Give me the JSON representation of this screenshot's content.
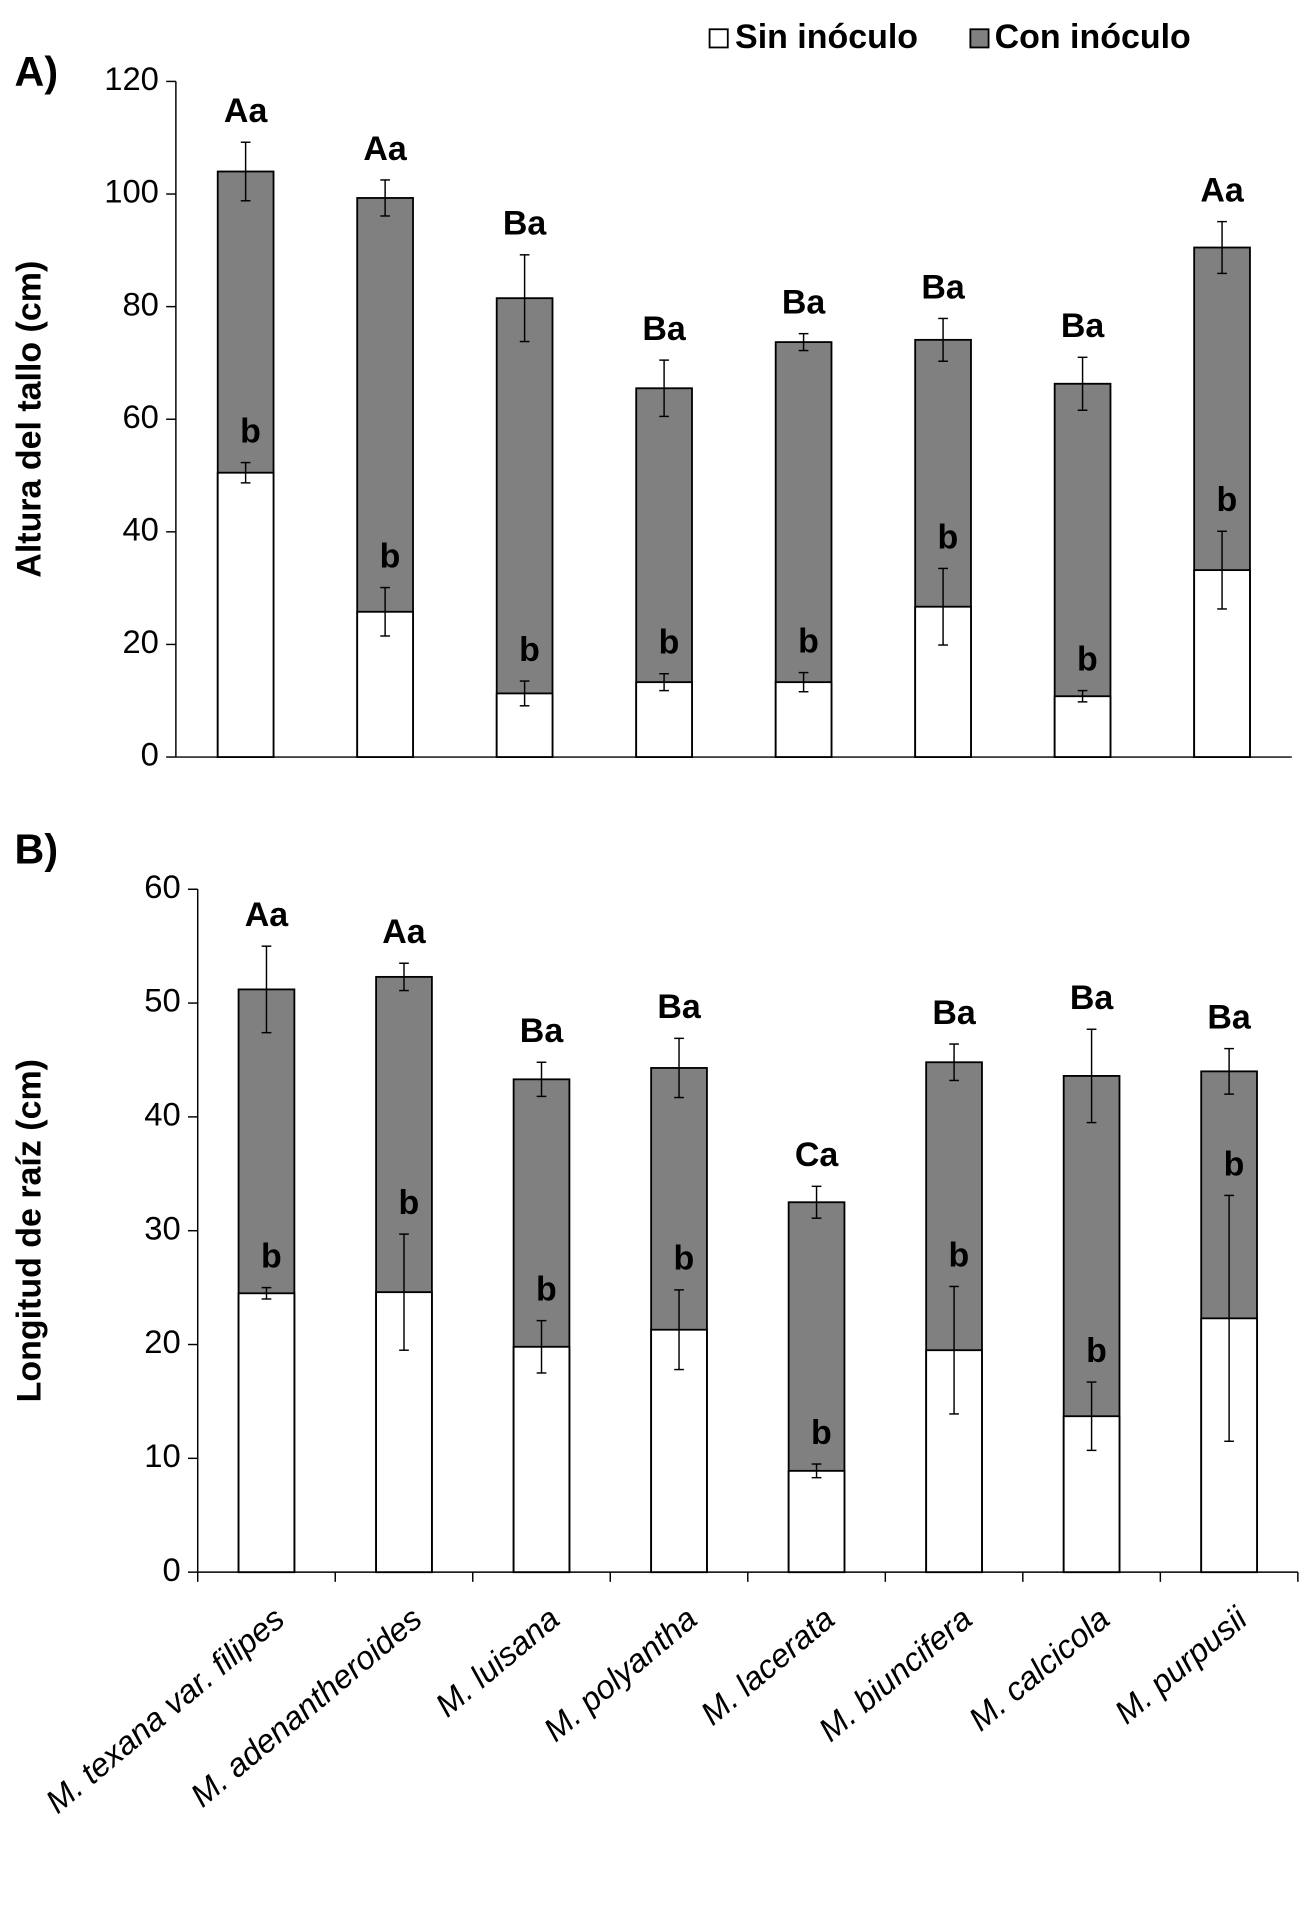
{
  "chart_data": [
    {
      "type": "bar",
      "panel_label": "A)",
      "y_label": "Altura del tallo  (cm)",
      "categories": [
        null,
        null,
        null,
        null,
        null,
        null,
        null,
        null
      ],
      "ylim": [
        0,
        120
      ],
      "yticks": [
        0,
        20,
        40,
        60,
        80,
        100,
        120
      ],
      "grid": false,
      "series": [
        {
          "name": "Con inóculo",
          "color": "#808080",
          "values": [
            104,
            99.3,
            81.5,
            65.5,
            73.7,
            74.1,
            66.3,
            90.5
          ],
          "errors": [
            5.2,
            3.2,
            7.7,
            5,
            1.5,
            3.8,
            4.7,
            4.6
          ],
          "letters": [
            "Aa",
            "Aa",
            "Ba",
            "Ba",
            "Ba",
            "Ba",
            "Ba",
            "Aa"
          ]
        },
        {
          "name": "Sin inóculo",
          "color": "#ffffff",
          "values": [
            50.5,
            25.8,
            11.3,
            13.3,
            13.3,
            26.7,
            10.8,
            33.2
          ],
          "errors": [
            1.8,
            4.3,
            2.2,
            1.5,
            1.7,
            6.8,
            1,
            6.9
          ],
          "letters": [
            "b",
            "b",
            "b",
            "b",
            "b",
            "b",
            "b",
            "b"
          ]
        }
      ]
    },
    {
      "type": "bar",
      "panel_label": "B)",
      "y_label": "Longitud de raíz  (cm)",
      "categories": [
        "M. texana var. filipes",
        "M. adenantheroides",
        "M. luisana",
        "M. polyantha",
        "M. lacerata",
        "M. biuncifera",
        "M. calcicola",
        "M. purpusii"
      ],
      "ylim": [
        0,
        60
      ],
      "yticks": [
        0,
        10,
        20,
        30,
        40,
        50,
        60
      ],
      "grid": false,
      "series": [
        {
          "name": "Con inóculo",
          "color": "#808080",
          "values": [
            51.2,
            52.3,
            43.3,
            44.3,
            32.5,
            44.8,
            43.6,
            44.0
          ],
          "errors": [
            3.8,
            1.2,
            1.5,
            2.6,
            1.4,
            1.6,
            4.1,
            2.0
          ],
          "letters": [
            "Aa",
            "Aa",
            "Ba",
            "Ba",
            "Ca",
            "Ba",
            "Ba",
            "Ba"
          ]
        },
        {
          "name": "Sin inóculo",
          "color": "#ffffff",
          "values": [
            24.5,
            24.6,
            19.8,
            21.3,
            8.9,
            19.5,
            13.7,
            22.3
          ],
          "errors": [
            0.5,
            5.1,
            2.3,
            3.5,
            0.6,
            5.6,
            3.0,
            10.8
          ],
          "letters": [
            "b",
            "b",
            "b",
            "b",
            "b",
            "b",
            "b",
            "b"
          ]
        }
      ]
    }
  ]
}
